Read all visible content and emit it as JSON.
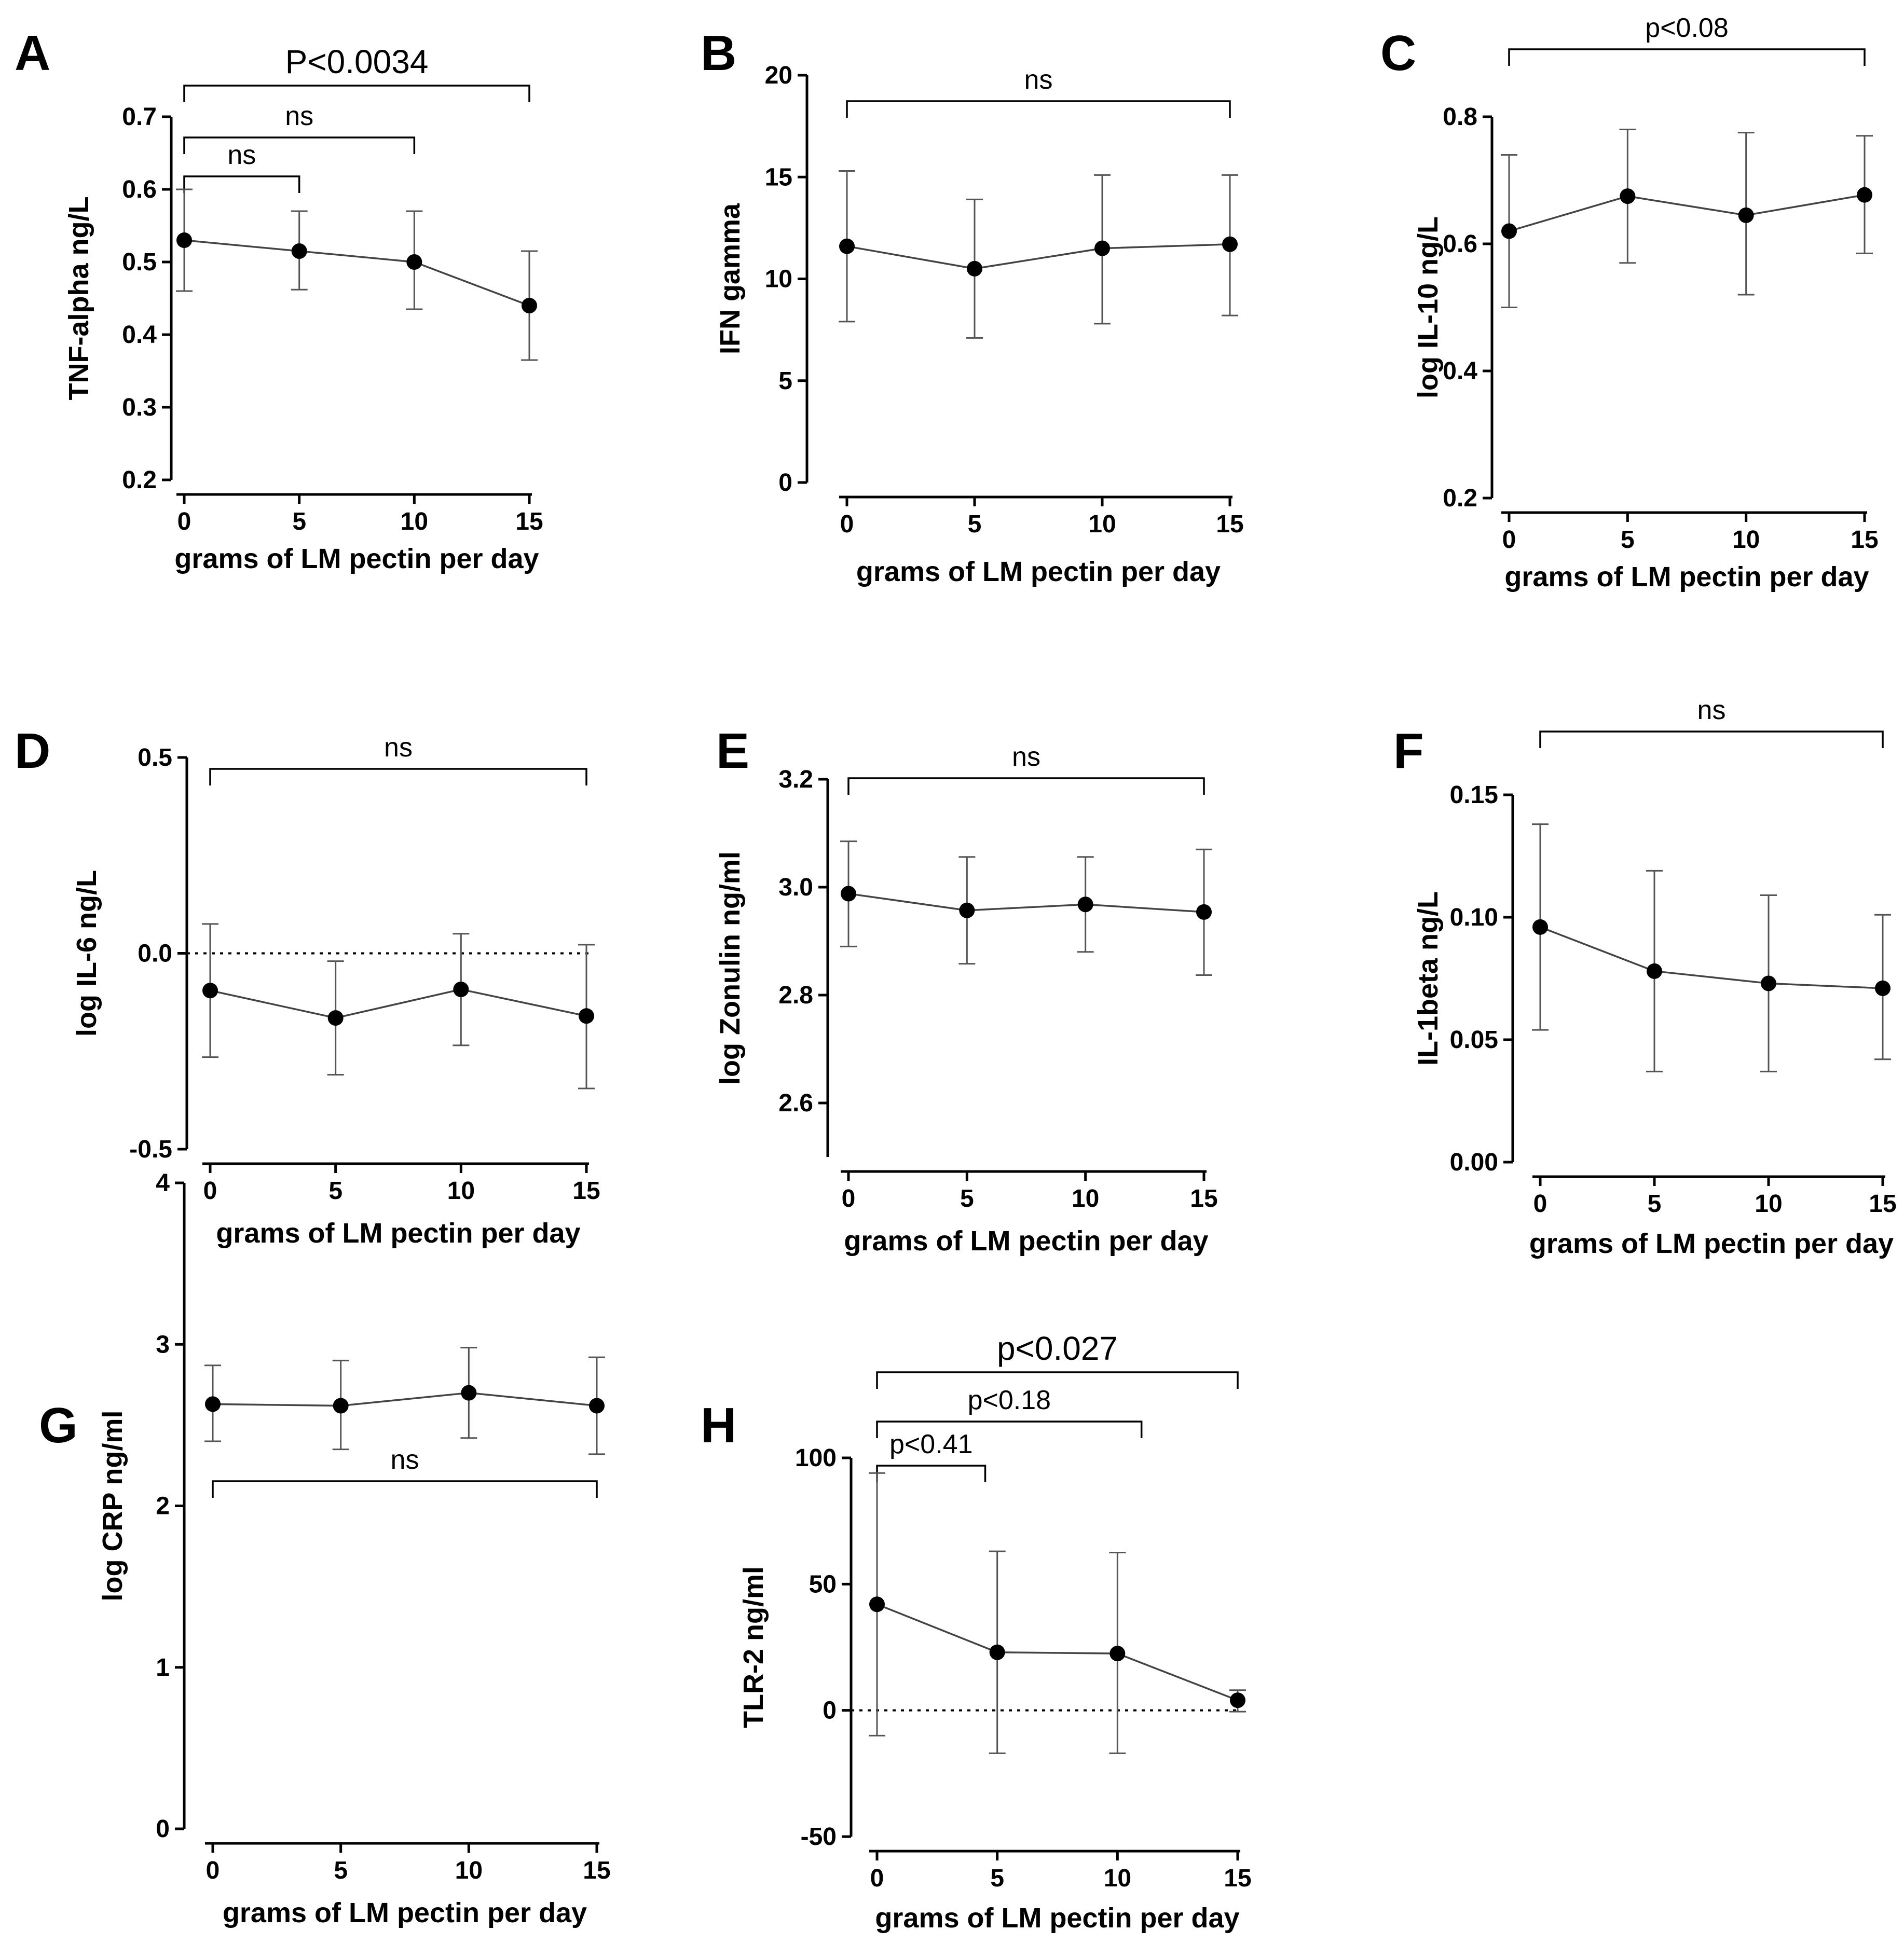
{
  "chart_data": [
    {
      "panel": "A",
      "type": "line",
      "xlabel": "grams of LM pectin per day",
      "ylabel": "TNF-alpha ng/L",
      "x": [
        0,
        5,
        10,
        15
      ],
      "xticks": [
        "0",
        "5",
        "10",
        "15"
      ],
      "ylim": [
        0.2,
        0.7
      ],
      "yticks": [
        "0.2",
        "0.3",
        "0.4",
        "0.5",
        "0.6",
        "0.7"
      ],
      "values": [
        0.53,
        0.515,
        0.5,
        0.44
      ],
      "error_low": [
        0.46,
        0.462,
        0.435,
        0.365
      ],
      "error_high": [
        0.6,
        0.57,
        0.57,
        0.515
      ],
      "brackets": [
        {
          "from": 0,
          "to": 15,
          "label": "P<0.0034"
        },
        {
          "from": 0,
          "to": 10,
          "label": "ns"
        },
        {
          "from": 0,
          "to": 5,
          "label": "ns"
        }
      ]
    },
    {
      "panel": "B",
      "type": "line",
      "xlabel": "grams of LM pectin per day",
      "ylabel": "IFN gamma",
      "x": [
        0,
        5,
        10,
        15
      ],
      "xticks": [
        "0",
        "5",
        "10",
        "15"
      ],
      "ylim": [
        0,
        20
      ],
      "yticks": [
        "0",
        "5",
        "10",
        "15",
        "20"
      ],
      "values": [
        11.6,
        10.5,
        11.5,
        11.7
      ],
      "error_low": [
        7.9,
        7.1,
        7.8,
        8.2
      ],
      "error_high": [
        15.3,
        13.9,
        15.1,
        15.1
      ],
      "brackets": [
        {
          "from": 0,
          "to": 15,
          "label": "ns"
        }
      ]
    },
    {
      "panel": "C",
      "type": "line",
      "xlabel": "grams of LM pectin per day",
      "ylabel": "log IL-10 ng/L",
      "x": [
        0,
        5,
        10,
        15
      ],
      "xticks": [
        "0",
        "5",
        "10",
        "15"
      ],
      "ylim": [
        0.2,
        0.8
      ],
      "yticks": [
        "0.2",
        "0.4",
        "0.6",
        "0.8"
      ],
      "values": [
        0.62,
        0.675,
        0.645,
        0.677
      ],
      "error_low": [
        0.5,
        0.57,
        0.52,
        0.585
      ],
      "error_high": [
        0.74,
        0.78,
        0.775,
        0.77
      ],
      "brackets": [
        {
          "from": 0,
          "to": 15,
          "label": "p<0.08"
        }
      ]
    },
    {
      "panel": "D",
      "type": "line",
      "xlabel": "grams of LM pectin per day",
      "ylabel": "log IL-6 ng/L",
      "x": [
        0,
        5,
        10,
        15
      ],
      "xticks": [
        "0",
        "5",
        "10",
        "15"
      ],
      "ylim": [
        -0.5,
        0.5
      ],
      "yticks": [
        "-0.5",
        "0.0",
        "0.5"
      ],
      "values": [
        -0.095,
        -0.165,
        -0.092,
        -0.16
      ],
      "error_low": [
        -0.265,
        -0.31,
        -0.235,
        -0.345
      ],
      "error_high": [
        0.075,
        -0.02,
        0.05,
        0.022
      ],
      "reference_line": 0,
      "brackets": [
        {
          "from": 0,
          "to": 15,
          "label": "ns"
        }
      ]
    },
    {
      "panel": "E",
      "type": "line",
      "xlabel": "grams of LM pectin per day",
      "ylabel": "log Zonulin ng/ml",
      "x": [
        0,
        5,
        10,
        15
      ],
      "xticks": [
        "0",
        "5",
        "10",
        "15"
      ],
      "ylim": [
        2.5,
        3.2
      ],
      "yticks": [
        "2.6",
        "2.8",
        "3.0",
        "3.2"
      ],
      "values": [
        2.988,
        2.957,
        2.968,
        2.954
      ],
      "error_low": [
        2.89,
        2.858,
        2.88,
        2.837
      ],
      "error_high": [
        3.085,
        3.056,
        3.056,
        3.07
      ],
      "brackets": [
        {
          "from": 0,
          "to": 15,
          "label": "ns"
        }
      ]
    },
    {
      "panel": "F",
      "type": "line",
      "xlabel": "grams of LM pectin per day",
      "ylabel": "IL-1beta ng/L",
      "x": [
        0,
        5,
        10,
        15
      ],
      "xticks": [
        "0",
        "5",
        "10",
        "15"
      ],
      "ylim": [
        0,
        0.15
      ],
      "yticks": [
        "0.00",
        "0.05",
        "0.10",
        "0.15"
      ],
      "values": [
        0.096,
        0.078,
        0.073,
        0.071
      ],
      "error_low": [
        0.054,
        0.037,
        0.037,
        0.042
      ],
      "error_high": [
        0.138,
        0.119,
        0.109,
        0.101
      ],
      "brackets": [
        {
          "from": 0,
          "to": 15,
          "label": "ns"
        }
      ]
    },
    {
      "panel": "G",
      "type": "line",
      "xlabel": "grams of LM pectin per day",
      "ylabel": "log CRP ng/ml",
      "x": [
        0,
        5,
        10,
        15
      ],
      "xticks": [
        "0",
        "5",
        "10",
        "15"
      ],
      "ylim": [
        0,
        4
      ],
      "yticks": [
        "0",
        "1",
        "2",
        "3",
        "4"
      ],
      "values": [
        2.63,
        2.62,
        2.7,
        2.62
      ],
      "error_low": [
        2.4,
        2.35,
        2.42,
        2.32
      ],
      "error_high": [
        2.87,
        2.9,
        2.98,
        2.92
      ],
      "brackets": [
        {
          "from": 0,
          "to": 15,
          "label": "ns"
        }
      ]
    },
    {
      "panel": "H",
      "type": "line",
      "xlabel": "grams of LM pectin per day",
      "ylabel": "TLR-2 ng/ml",
      "x": [
        0,
        5,
        10,
        15
      ],
      "xticks": [
        "0",
        "5",
        "10",
        "15"
      ],
      "ylim": [
        -50,
        100
      ],
      "yticks": [
        "-50",
        "0",
        "50",
        "100"
      ],
      "values": [
        42,
        23,
        22.5,
        4
      ],
      "error_low": [
        -10,
        -17,
        -17,
        -0.5
      ],
      "error_high": [
        94,
        63,
        62.5,
        8
      ],
      "reference_line": 0,
      "brackets": [
        {
          "from": 0,
          "to": 15,
          "label": "p<0.027"
        },
        {
          "from": 0,
          "to": 11,
          "label": "p<0.18"
        },
        {
          "from": 0,
          "to": 4.5,
          "label": "p<0.41"
        }
      ]
    }
  ]
}
